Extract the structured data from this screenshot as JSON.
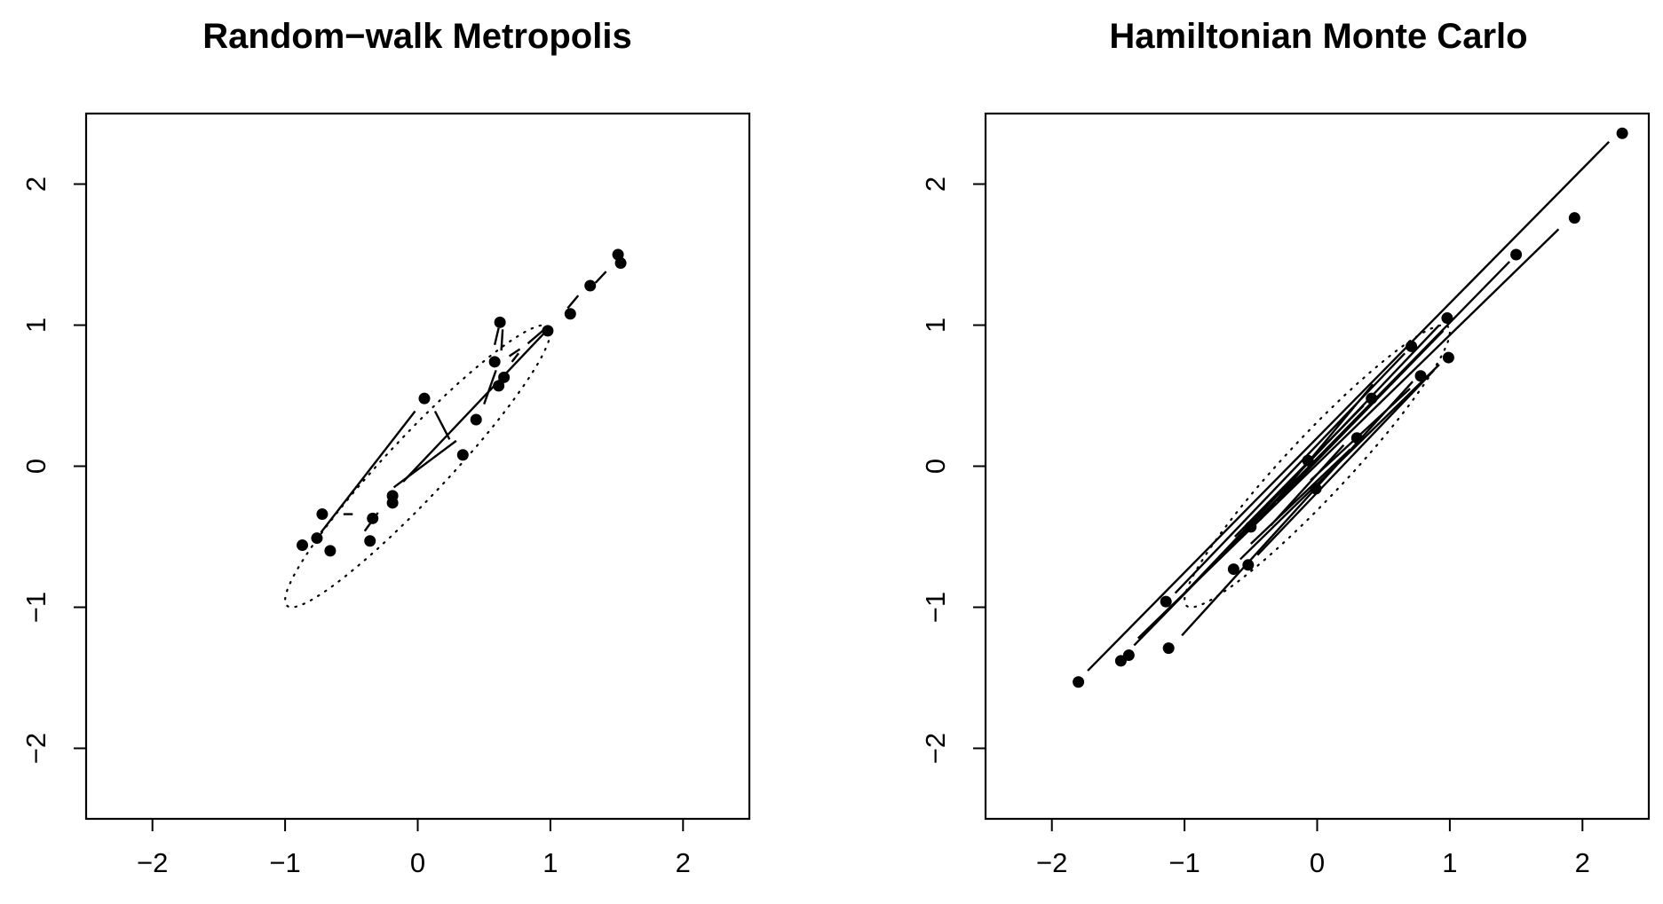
{
  "chart_data": [
    {
      "type": "scatter",
      "title": "Random−walk Metropolis",
      "xlabel": "",
      "ylabel": "",
      "xlim": [
        -2.5,
        2.5
      ],
      "ylim": [
        -2.5,
        2.5
      ],
      "x_ticks": [
        -2,
        -1,
        0,
        1,
        2
      ],
      "y_ticks": [
        -2,
        -1,
        0,
        1,
        2
      ],
      "x_tick_labels": [
        "−2",
        "−1",
        "0",
        "1",
        "2"
      ],
      "y_tick_labels": [
        "−2",
        "−1",
        "0",
        "1",
        "2"
      ],
      "target_contour": {
        "mean": [
          0,
          0
        ],
        "sd": [
          1,
          1
        ],
        "rho": 0.95,
        "level_sd": 1
      },
      "points": [
        {
          "x": 0.05,
          "y": 0.48
        },
        {
          "x": -0.72,
          "y": -0.34
        },
        {
          "x": -0.87,
          "y": -0.56
        },
        {
          "x": -0.76,
          "y": -0.51
        },
        {
          "x": -0.66,
          "y": -0.6
        },
        {
          "x": -0.34,
          "y": -0.37
        },
        {
          "x": -0.36,
          "y": -0.53
        },
        {
          "x": -0.19,
          "y": -0.21
        },
        {
          "x": -0.19,
          "y": -0.26
        },
        {
          "x": 0.34,
          "y": 0.08
        },
        {
          "x": 0.44,
          "y": 0.33
        },
        {
          "x": 0.58,
          "y": 0.74
        },
        {
          "x": 0.62,
          "y": 1.02
        },
        {
          "x": 0.61,
          "y": 0.57
        },
        {
          "x": 0.65,
          "y": 0.63
        },
        {
          "x": 0.98,
          "y": 0.96
        },
        {
          "x": 1.15,
          "y": 1.08
        },
        {
          "x": 1.3,
          "y": 1.28
        },
        {
          "x": 1.51,
          "y": 1.5
        },
        {
          "x": 1.53,
          "y": 1.44
        }
      ],
      "segments": [
        {
          "x0": -0.73,
          "y0": -0.47,
          "x1": -0.02,
          "y1": 0.39
        },
        {
          "x0": 0.13,
          "y0": 0.39,
          "x1": 0.24,
          "y1": 0.19
        },
        {
          "x0": -0.56,
          "y0": -0.34,
          "x1": -0.49,
          "y1": -0.34
        },
        {
          "x0": -0.18,
          "y0": -0.15,
          "x1": 0.29,
          "y1": 0.18
        },
        {
          "x0": -0.11,
          "y0": -0.11,
          "x1": 0.98,
          "y1": 0.97
        },
        {
          "x0": 0.5,
          "y0": 0.44,
          "x1": 0.59,
          "y1": 0.68
        },
        {
          "x0": 0.58,
          "y0": 0.86,
          "x1": 0.61,
          "y1": 0.98
        },
        {
          "x0": 0.63,
          "y0": 0.82,
          "x1": 0.64,
          "y1": 0.97
        },
        {
          "x0": 0.69,
          "y0": 0.78,
          "x1": 0.77,
          "y1": 0.83
        },
        {
          "x0": 0.71,
          "y0": 0.74,
          "x1": 0.76,
          "y1": 0.8
        },
        {
          "x0": 0.83,
          "y0": 0.87,
          "x1": 0.98,
          "y1": 0.99
        },
        {
          "x0": -0.4,
          "y0": -0.46,
          "x1": -0.3,
          "y1": -0.33
        },
        {
          "x0": 1.13,
          "y0": 1.12,
          "x1": 1.21,
          "y1": 1.21
        },
        {
          "x0": 1.34,
          "y0": 1.3,
          "x1": 1.42,
          "y1": 1.38
        }
      ]
    },
    {
      "type": "scatter",
      "title": "Hamiltonian Monte Carlo",
      "xlabel": "",
      "ylabel": "",
      "xlim": [
        -2.5,
        2.5
      ],
      "ylim": [
        -2.5,
        2.5
      ],
      "x_ticks": [
        -2,
        -1,
        0,
        1,
        2
      ],
      "y_ticks": [
        -2,
        -1,
        0,
        1,
        2
      ],
      "x_tick_labels": [
        "−2",
        "−1",
        "0",
        "1",
        "2"
      ],
      "y_tick_labels": [
        "−2",
        "−1",
        "0",
        "1",
        "2"
      ],
      "target_contour": {
        "mean": [
          0,
          0
        ],
        "sd": [
          1,
          1
        ],
        "rho": 0.95,
        "level_sd": 1
      },
      "points": [
        {
          "x": -1.8,
          "y": -1.53
        },
        {
          "x": -1.48,
          "y": -1.38
        },
        {
          "x": -1.42,
          "y": -1.34
        },
        {
          "x": -1.14,
          "y": -0.96
        },
        {
          "x": -1.12,
          "y": -1.29
        },
        {
          "x": -0.63,
          "y": -0.73
        },
        {
          "x": -0.52,
          "y": -0.7
        },
        {
          "x": -0.5,
          "y": -0.43
        },
        {
          "x": -0.07,
          "y": 0.04
        },
        {
          "x": -0.01,
          "y": -0.16
        },
        {
          "x": 0.3,
          "y": 0.2
        },
        {
          "x": 0.41,
          "y": 0.48
        },
        {
          "x": 0.71,
          "y": 0.85
        },
        {
          "x": 0.78,
          "y": 0.64
        },
        {
          "x": 0.98,
          "y": 1.05
        },
        {
          "x": 0.99,
          "y": 0.77
        },
        {
          "x": 1.5,
          "y": 1.5
        },
        {
          "x": 1.94,
          "y": 1.76
        },
        {
          "x": 2.3,
          "y": 2.36
        }
      ],
      "segments": [
        {
          "x0": -1.73,
          "y0": -1.45,
          "x1": 2.2,
          "y1": 2.3
        },
        {
          "x0": -1.38,
          "y0": -1.27,
          "x1": 1.45,
          "y1": 1.45
        },
        {
          "x0": -1.35,
          "y0": -1.22,
          "x1": 1.82,
          "y1": 1.68
        },
        {
          "x0": -1.07,
          "y0": -0.9,
          "x1": 0.66,
          "y1": 0.8
        },
        {
          "x0": -1.02,
          "y0": -1.2,
          "x1": 0.72,
          "y1": 0.6
        },
        {
          "x0": -1.0,
          "y0": -0.9,
          "x1": 0.92,
          "y1": 1.0
        },
        {
          "x0": -0.58,
          "y0": -0.66,
          "x1": 0.92,
          "y1": 0.72
        },
        {
          "x0": -0.45,
          "y0": -0.63,
          "x1": 0.88,
          "y1": 0.68
        },
        {
          "x0": -0.43,
          "y0": -0.38,
          "x1": 0.42,
          "y1": 0.58
        },
        {
          "x0": -0.62,
          "y0": -0.5,
          "x1": 0.35,
          "y1": 0.43
        },
        {
          "x0": -0.5,
          "y0": -0.55,
          "x1": 0.25,
          "y1": 0.12
        },
        {
          "x0": -0.05,
          "y0": -0.1,
          "x1": 0.7,
          "y1": 0.55
        },
        {
          "x0": -0.3,
          "y0": -0.25,
          "x1": 0.95,
          "y1": 0.96
        },
        {
          "x0": -0.35,
          "y0": -0.42,
          "x1": 0.2,
          "y1": 0.15
        }
      ]
    }
  ]
}
